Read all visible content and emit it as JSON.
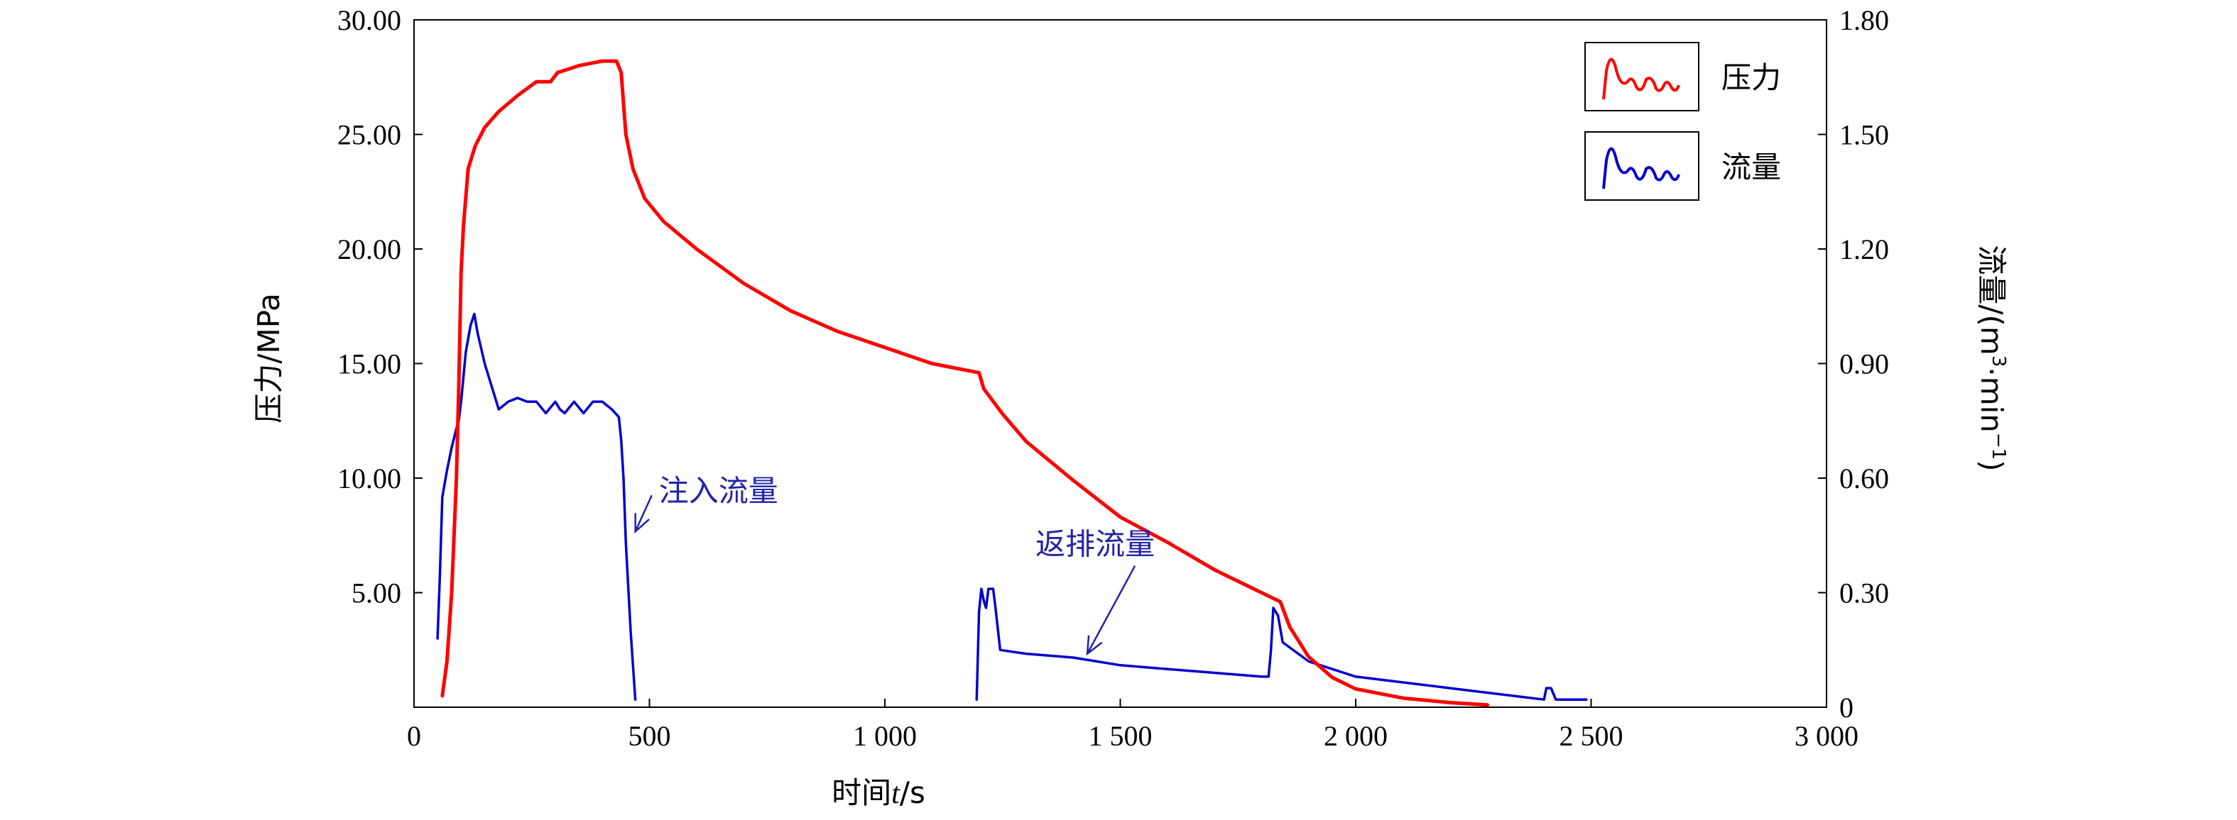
{
  "chart_data": {
    "type": "line",
    "title": "",
    "xlabel": "时间t/s",
    "xlabel_parts": {
      "prefix": "时间",
      "var": "t",
      "unit": "/s"
    },
    "ylabel_left": "压力/MPa",
    "ylabel_right": "流量/(m³·min⁻¹)",
    "ylabel_right_parts": {
      "main": "流量/(m",
      "sup1": "3",
      "mid": "·min",
      "sup2": "−1",
      "end": ")"
    },
    "xlim": [
      0,
      3000
    ],
    "ylim_left": [
      0,
      30
    ],
    "ylim_right": [
      0,
      1.8
    ],
    "x_ticks": [
      0,
      500,
      1000,
      1500,
      2000,
      2500,
      3000
    ],
    "x_tick_labels": [
      "0",
      "500",
      "1 000",
      "1 500",
      "2 000",
      "2 500",
      "3 000"
    ],
    "y_left_ticks": [
      5,
      10,
      15,
      20,
      25,
      30
    ],
    "y_left_tick_labels": [
      "5.00",
      "10.00",
      "15.00",
      "20.00",
      "25.00",
      "30.00"
    ],
    "y_right_ticks": [
      0,
      0.3,
      0.6,
      0.9,
      1.2,
      1.5,
      1.8
    ],
    "y_right_tick_labels": [
      "0",
      "0.30",
      "0.60",
      "0.90",
      "1.20",
      "1.50",
      "1.80"
    ],
    "grid": false,
    "legend_placement": "top-right",
    "colors": {
      "pressure": "#ff0000",
      "flow": "#0000cc",
      "annotation": "#2222aa"
    },
    "series": [
      {
        "name": "压力",
        "axis": "left",
        "x": [
          60,
          70,
          80,
          90,
          95,
          100,
          105,
          115,
          130,
          150,
          180,
          220,
          260,
          290,
          305,
          320,
          350,
          400,
          430,
          440,
          450,
          465,
          490,
          530,
          600,
          700,
          800,
          900,
          1000,
          1100,
          1150,
          1200,
          1210,
          1250,
          1300,
          1400,
          1500,
          1600,
          1700,
          1800,
          1840,
          1860,
          1900,
          1950,
          2000,
          2100,
          2200,
          2280
        ],
        "y": [
          0.5,
          2,
          5,
          10,
          14,
          19,
          21,
          23.5,
          24.5,
          25.3,
          26,
          26.7,
          27.3,
          27.3,
          27.7,
          27.8,
          28,
          28.2,
          28.2,
          27.7,
          25,
          23.5,
          22.2,
          21.2,
          20,
          18.5,
          17.3,
          16.4,
          15.7,
          15,
          14.8,
          14.6,
          13.9,
          12.8,
          11.6,
          9.9,
          8.3,
          7.2,
          6,
          5,
          4.6,
          3.5,
          2.2,
          1.3,
          0.8,
          0.4,
          0.2,
          0.1
        ]
      },
      {
        "name": "流量",
        "axis": "right",
        "x": [
          50,
          55,
          60,
          70,
          80,
          90,
          95,
          100,
          110,
          120,
          128,
          135,
          150,
          180,
          200,
          220,
          240,
          260,
          280,
          300,
          310,
          320,
          340,
          360,
          380,
          400,
          420,
          435,
          440,
          445,
          450,
          460,
          470,
          1195,
          1200,
          1205,
          1210,
          1215,
          1220,
          1230,
          1235,
          1245,
          1300,
          1400,
          1500,
          1600,
          1700,
          1800,
          1815,
          1820,
          1825,
          1835,
          1845,
          1900,
          2000,
          2200,
          2400,
          2405,
          2415,
          2425,
          2490
        ],
        "y": [
          0.18,
          0.35,
          0.55,
          0.62,
          0.68,
          0.73,
          0.75,
          0.8,
          0.93,
          1.0,
          1.03,
          0.98,
          0.9,
          0.78,
          0.8,
          0.81,
          0.8,
          0.8,
          0.77,
          0.8,
          0.78,
          0.77,
          0.8,
          0.77,
          0.8,
          0.8,
          0.78,
          0.76,
          0.7,
          0.6,
          0.43,
          0.2,
          0.02,
          0.02,
          0.25,
          0.31,
          0.28,
          0.26,
          0.31,
          0.31,
          0.26,
          0.15,
          0.14,
          0.13,
          0.11,
          0.1,
          0.09,
          0.08,
          0.08,
          0.15,
          0.26,
          0.24,
          0.17,
          0.12,
          0.08,
          0.05,
          0.02,
          0.05,
          0.05,
          0.02,
          0.02
        ]
      }
    ],
    "annotations": [
      {
        "text": "注入流量",
        "arrow_target": [
          470,
          0.46
        ],
        "label_at": [
          520,
          0.54
        ]
      },
      {
        "text": "返排流量",
        "arrow_target": [
          1430,
          0.14
        ],
        "label_at": [
          1320,
          0.4
        ]
      }
    ]
  }
}
